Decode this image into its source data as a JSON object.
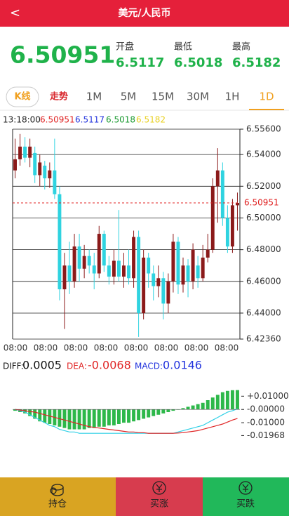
{
  "header": {
    "back": "<",
    "title": "美元/人民币"
  },
  "quote": {
    "price": "6.50951",
    "fields": [
      {
        "label": "开盘",
        "value": "6.5117"
      },
      {
        "label": "最低",
        "value": "6.5018"
      },
      {
        "label": "最高",
        "value": "6.5182"
      }
    ]
  },
  "tabs": [
    "K线",
    "走势",
    "1M",
    "5M",
    "15M",
    "30M",
    "1H",
    "1D"
  ],
  "chart_data": [
    {
      "type": "candlestick",
      "info": [
        "13:18:00",
        "6.50951",
        "6.5117",
        "6.5018",
        "6.5182"
      ],
      "x_labels": [
        "08:00",
        "08:00",
        "08:00",
        "08:00",
        "08:00",
        "08:00",
        "08:00",
        "08:00"
      ],
      "up_color": "#8b1a1a",
      "down_color": "#2fd3e0",
      "open": [
        6.53,
        6.537,
        6.545,
        6.538,
        6.541,
        6.527,
        6.533,
        6.525,
        6.53,
        6.515,
        6.455,
        6.47,
        6.46,
        6.482,
        6.468,
        6.476,
        6.47,
        6.465,
        6.49,
        6.47,
        6.463,
        6.473,
        6.463,
        6.47,
        6.462,
        6.488,
        6.44,
        6.475,
        6.465,
        6.457,
        6.462,
        6.446,
        6.46,
        6.485,
        6.458,
        6.47,
        6.46,
        6.47,
        6.462,
        6.475,
        6.48,
        6.52,
        6.53,
        6.5,
        6.482,
        6.508
      ],
      "high": [
        6.55,
        6.553,
        6.551,
        6.55,
        6.545,
        6.54,
        6.536,
        6.535,
        6.55,
        6.52,
        6.478,
        6.485,
        6.49,
        6.49,
        6.483,
        6.48,
        6.478,
        6.495,
        6.492,
        6.476,
        6.48,
        6.505,
        6.478,
        6.48,
        6.492,
        6.492,
        6.48,
        6.478,
        6.47,
        6.47,
        6.466,
        6.465,
        6.49,
        6.488,
        6.475,
        6.474,
        6.484,
        6.476,
        6.483,
        6.49,
        6.525,
        6.544,
        6.535,
        6.508,
        6.512,
        6.516
      ],
      "low": [
        6.525,
        6.533,
        6.535,
        6.532,
        6.522,
        6.52,
        6.518,
        6.519,
        6.512,
        6.448,
        6.43,
        6.452,
        6.456,
        6.46,
        6.462,
        6.465,
        6.455,
        6.462,
        6.466,
        6.458,
        6.458,
        6.46,
        6.456,
        6.458,
        6.456,
        6.425,
        6.436,
        6.456,
        6.448,
        6.45,
        6.436,
        6.44,
        6.453,
        6.452,
        6.453,
        6.45,
        6.455,
        6.456,
        6.46,
        6.472,
        6.478,
        6.497,
        6.495,
        6.478,
        6.478,
        6.492
      ],
      "close": [
        6.537,
        6.545,
        6.538,
        6.545,
        6.527,
        6.535,
        6.525,
        6.53,
        6.515,
        6.455,
        6.47,
        6.46,
        6.482,
        6.468,
        6.476,
        6.47,
        6.465,
        6.49,
        6.47,
        6.463,
        6.473,
        6.463,
        6.47,
        6.462,
        6.488,
        6.44,
        6.475,
        6.465,
        6.457,
        6.462,
        6.446,
        6.46,
        6.485,
        6.458,
        6.47,
        6.46,
        6.48,
        6.462,
        6.475,
        6.48,
        6.52,
        6.53,
        6.5,
        6.482,
        6.508,
        6.50951
      ],
      "last_price": 6.50951,
      "ylim": [
        6.4236,
        6.556
      ],
      "yticks": [
        {
          "value": 6.556,
          "label": "6.55600"
        },
        {
          "value": 6.54,
          "label": "6.54000"
        },
        {
          "value": 6.52,
          "label": "6.52000"
        },
        {
          "value": 6.5,
          "label": "6.50000"
        },
        {
          "value": 6.48,
          "label": "6.48000"
        },
        {
          "value": 6.46,
          "label": "6.46000"
        },
        {
          "value": 6.44,
          "label": "6.44000"
        },
        {
          "value": 6.4236,
          "label": "6.42360"
        }
      ],
      "grid": true
    },
    {
      "type": "macd",
      "series": [
        {
          "name": "DIFF:",
          "color": "#30d0e6",
          "values": [
            0,
            -0.001,
            -0.002,
            -0.004,
            -0.006,
            -0.008,
            -0.01,
            -0.012,
            -0.013,
            -0.015,
            -0.016,
            -0.017,
            -0.017,
            -0.018,
            -0.018,
            -0.018,
            -0.018,
            -0.018,
            -0.018,
            -0.018,
            -0.018,
            -0.018,
            -0.018,
            -0.018,
            -0.018,
            -0.018,
            -0.018,
            -0.018,
            -0.018,
            -0.018,
            -0.018,
            -0.018,
            -0.018,
            -0.017,
            -0.016,
            -0.015,
            -0.014,
            -0.013,
            -0.012,
            -0.01,
            -0.008,
            -0.006,
            -0.004,
            -0.002,
            -0.001,
            0.0005
          ]
        },
        {
          "name": "DEA:",
          "color": "#e02424",
          "values": [
            0,
            -0.0005,
            -0.001,
            -0.0015,
            -0.002,
            -0.003,
            -0.004,
            -0.005,
            -0.006,
            -0.007,
            -0.008,
            -0.009,
            -0.01,
            -0.011,
            -0.012,
            -0.013,
            -0.0135,
            -0.014,
            -0.0145,
            -0.015,
            -0.0155,
            -0.016,
            -0.0165,
            -0.017,
            -0.017,
            -0.0175,
            -0.0175,
            -0.018,
            -0.018,
            -0.018,
            -0.018,
            -0.018,
            -0.018,
            -0.0178,
            -0.0175,
            -0.017,
            -0.0165,
            -0.016,
            -0.015,
            -0.014,
            -0.013,
            -0.012,
            -0.011,
            -0.0095,
            -0.008,
            -0.0068
          ]
        },
        {
          "name": "MACD:",
          "color": "#2db84a",
          "values": [
            -0.001,
            -0.002,
            -0.003,
            -0.005,
            -0.007,
            -0.009,
            -0.01,
            -0.011,
            -0.012,
            -0.013,
            -0.014,
            -0.015,
            -0.015,
            -0.015,
            -0.015,
            -0.014,
            -0.014,
            -0.013,
            -0.013,
            -0.012,
            -0.012,
            -0.011,
            -0.01,
            -0.01,
            -0.009,
            -0.008,
            -0.007,
            -0.006,
            -0.005,
            -0.004,
            -0.003,
            -0.002,
            -0.001,
            0,
            0.001,
            0.002,
            0.003,
            0.004,
            0.005,
            0.007,
            0.009,
            0.011,
            0.013,
            0.014,
            0.0145,
            0.0146
          ]
        }
      ],
      "legend_colors": [
        "#111111",
        "#e02424",
        "#2233dd"
      ],
      "ylim": [
        -0.02,
        0.016
      ],
      "yticks": [
        {
          "value": 0.01,
          "label": "+0.01000"
        },
        {
          "value": 0,
          "label": "-0.00000"
        },
        {
          "value": -0.01,
          "label": "-0.01000"
        },
        {
          "value": -0.01968,
          "label": "-0.01968"
        }
      ]
    }
  ],
  "buttons": [
    "持仓",
    "买涨",
    "买跌"
  ]
}
